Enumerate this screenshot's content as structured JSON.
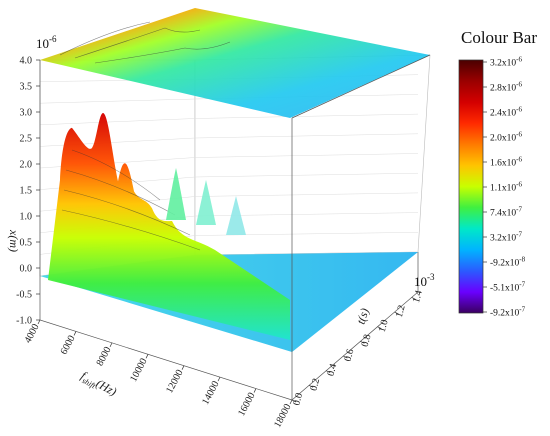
{
  "chart_data": {
    "type": "surface3d",
    "x_axis": {
      "label": "f",
      "label_sub": "shift",
      "label_unit": "(Hz)",
      "ticks": [
        "4000",
        "6000",
        "8000",
        "10000",
        "12000",
        "14000",
        "16000",
        "18000"
      ],
      "range": [
        4000,
        18000
      ]
    },
    "y_axis": {
      "label": "t(s)",
      "multiplier": "10",
      "multiplier_exp": "-3",
      "ticks": [
        "0.0",
        "0.2",
        "0.4",
        "0.6",
        "0.8",
        "1.0",
        "1.2",
        "1.4"
      ],
      "range": [
        0,
        1.4
      ]
    },
    "z_axis": {
      "label": "x(m)",
      "multiplier": "10",
      "multiplier_exp": "-6",
      "ticks": [
        "-1.0",
        "-0.5",
        "0.0",
        "0.5",
        "1.0",
        "1.5",
        "2.0",
        "2.5",
        "3.0",
        "3.5",
        "4.0"
      ],
      "range": [
        -1.0,
        4.0
      ]
    },
    "peaks": [
      {
        "f": 5000,
        "t": 0.15,
        "x": 3.5
      },
      {
        "f": 5800,
        "t": 0.25,
        "x": 3.85
      },
      {
        "f": 7500,
        "t": 0.4,
        "x": 2.0
      },
      {
        "f": 9500,
        "t": 0.55,
        "x": 1.6
      },
      {
        "f": 11000,
        "t": 0.75,
        "x": 1.3
      }
    ],
    "projection_top": "contour map on ceiling plane at 4.0",
    "projection_base": "surface floor at 0.0",
    "colorbar": {
      "title": "Colour Bar",
      "labels": [
        {
          "m": "3.2",
          "e": "-6"
        },
        {
          "m": "2.8",
          "e": "-6"
        },
        {
          "m": "2.4",
          "e": "-6"
        },
        {
          "m": "2.0",
          "e": "-6"
        },
        {
          "m": "1.6",
          "e": "-6"
        },
        {
          "m": "1.1",
          "e": "-6"
        },
        {
          "m": "7.4",
          "e": "-7"
        },
        {
          "m": "3.2",
          "e": "-7"
        },
        {
          "m": "-9.2",
          "e": "-8"
        },
        {
          "m": "-5.1",
          "e": "-7"
        },
        {
          "m": "-9.2",
          "e": "-7"
        }
      ],
      "colors": [
        "#4a0000",
        "#9a0000",
        "#d40000",
        "#ff2a00",
        "#ff7a00",
        "#ffc400",
        "#c8ff00",
        "#40f040",
        "#00e8c8",
        "#00b4ff",
        "#2a5cff",
        "#6a00ff",
        "#3a0060"
      ]
    },
    "grid": true
  }
}
